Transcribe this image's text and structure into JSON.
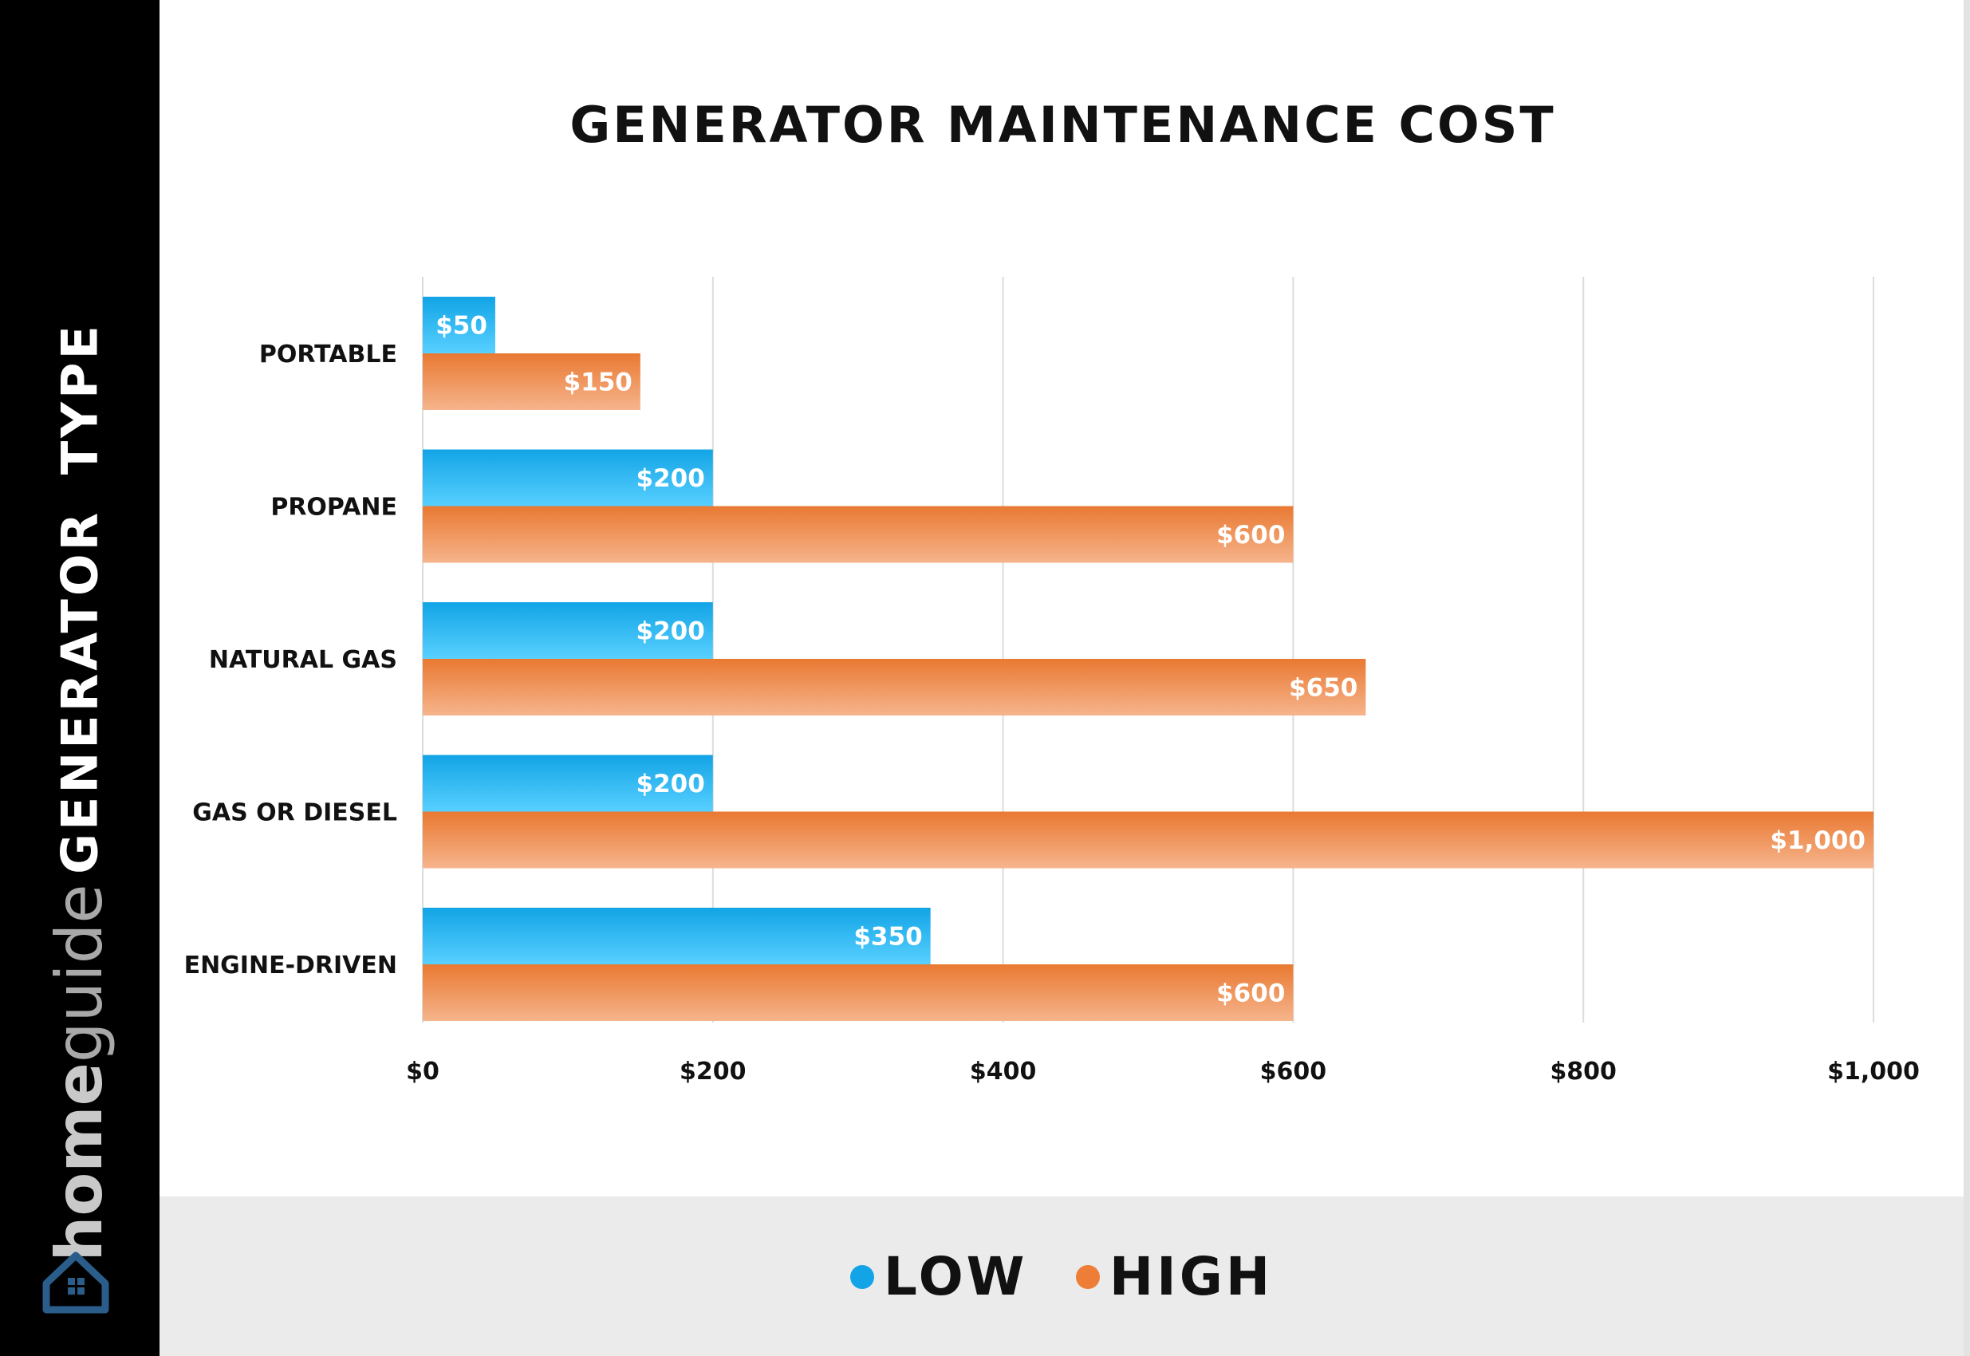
{
  "brand": {
    "part1": "home",
    "part2": "guide"
  },
  "chart_data": {
    "type": "bar",
    "orientation": "horizontal",
    "title": "GENERATOR MAINTENANCE COST",
    "ylabel": "GENERATOR TYPE",
    "xlabel": "",
    "categories": [
      "PORTABLE",
      "PROPANE",
      "NATURAL GAS",
      "GAS OR DIESEL",
      "ENGINE-DRIVEN"
    ],
    "series": [
      {
        "name": "LOW",
        "color": "#1ea7e8",
        "values": [
          50,
          200,
          200,
          200,
          350
        ],
        "labels": [
          "$50",
          "$200",
          "$200",
          "$200",
          "$350"
        ]
      },
      {
        "name": "HIGH",
        "color": "#ee7d37",
        "values": [
          150,
          600,
          650,
          1000,
          600
        ],
        "labels": [
          "$150",
          "$600",
          "$650",
          "$1,000",
          "$600"
        ]
      }
    ],
    "xlim": [
      0,
      1000
    ],
    "xticks": [
      0,
      200,
      400,
      600,
      800,
      1000
    ],
    "xtick_labels": [
      "$0",
      "$200",
      "$400",
      "$600",
      "$800",
      "$1,000"
    ],
    "grid": true,
    "legend_position": "bottom"
  }
}
